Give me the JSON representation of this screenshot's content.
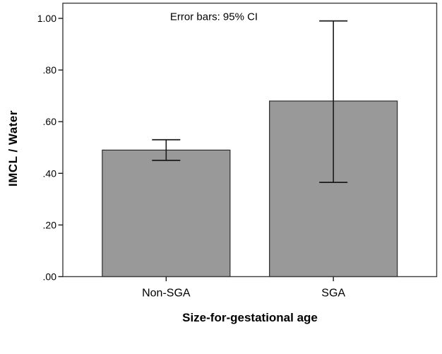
{
  "chart_data": {
    "type": "bar",
    "title": "",
    "annotation": "Error bars: 95% CI",
    "xlabel": "Size-for-gestational age",
    "ylabel": "IMCL / Water",
    "categories": [
      "Non-SGA",
      "SGA"
    ],
    "values": [
      0.49,
      0.68
    ],
    "error_bars": {
      "label": "95% CI",
      "low": [
        0.45,
        0.365
      ],
      "high": [
        0.53,
        0.99
      ]
    },
    "ylim": [
      0,
      1.0
    ],
    "yticks": [
      0,
      0.2,
      0.4,
      0.6,
      0.8,
      1.0
    ],
    "ytick_labels": [
      ".00",
      ".20",
      ".40",
      ".60",
      ".80",
      "1.00"
    ],
    "grid": false,
    "legend_position": "none",
    "bar_color": "#999999",
    "bar_border_color": "#2b2b2b",
    "frame_color": "#3d3d3d",
    "axis_text_color": "#000000"
  }
}
